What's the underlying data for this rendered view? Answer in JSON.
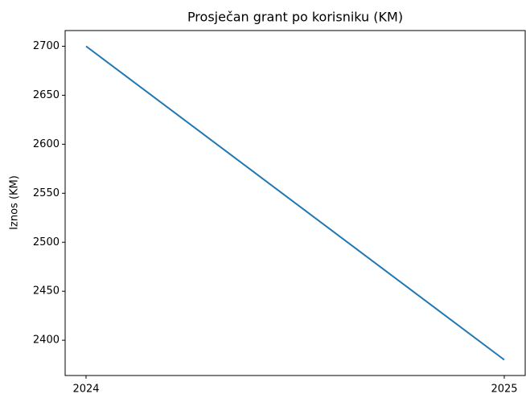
{
  "chart_data": {
    "type": "line",
    "title": "Prosječan grant po korisniku (KM)",
    "ylabel": "Iznos (KM)",
    "x": [
      2024,
      2025
    ],
    "series": [
      {
        "name": "Prosječan grant",
        "color": "#1f77b4",
        "values": [
          2700,
          2380
        ]
      }
    ],
    "xlim": [
      2023.95,
      2025.05
    ],
    "xticks": [
      2024,
      2025
    ],
    "ylim": [
      2364,
      2716
    ],
    "yticks": [
      2400,
      2450,
      2500,
      2550,
      2600,
      2650,
      2700
    ]
  }
}
